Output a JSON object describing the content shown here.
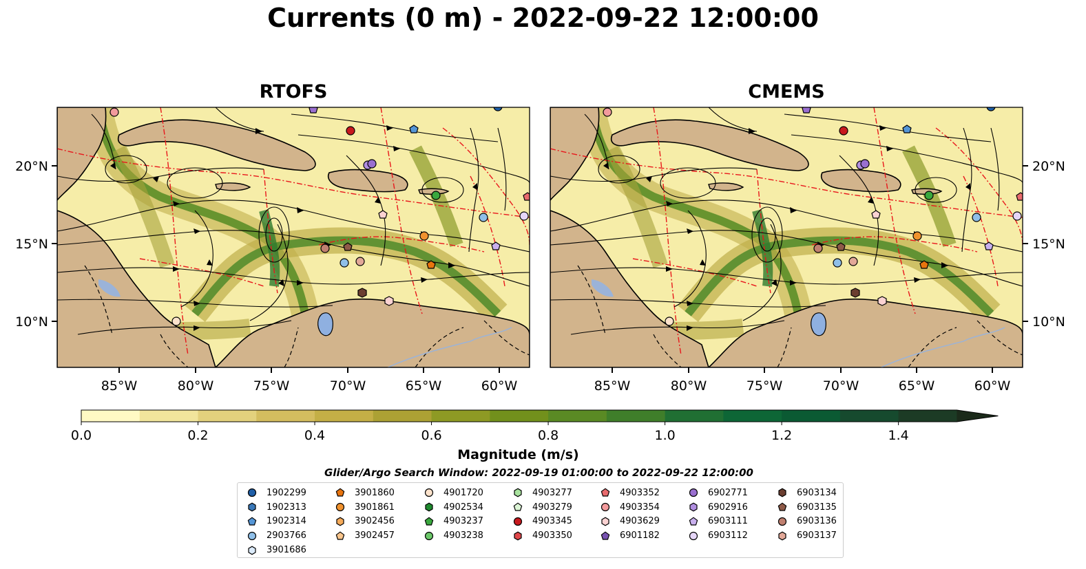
{
  "title": "Currents (0 m) - 2022-09-22 12:00:00",
  "panels": [
    {
      "title": "RTOFS"
    },
    {
      "title": "CMEMS"
    }
  ],
  "axes": {
    "lon_ticks": [
      "85°W",
      "80°W",
      "75°W",
      "70°W",
      "65°W",
      "60°W"
    ],
    "lat_ticks": [
      "20°N",
      "15°N",
      "10°N"
    ]
  },
  "colorbar": {
    "label": "Magnitude (m/s)",
    "ticks": [
      "0.0",
      "0.2",
      "0.4",
      "0.6",
      "0.8",
      "1.0",
      "1.2",
      "1.4"
    ],
    "range": [
      0,
      1.5
    ],
    "extend": "max",
    "colors": [
      "#fff9c4",
      "#f1e59c",
      "#e3d17d",
      "#d4bd5f",
      "#c4af46",
      "#aca134",
      "#8e9a24",
      "#72901c",
      "#5a8a24",
      "#3f7e2a",
      "#206f33",
      "#0d6636",
      "#0b5a33",
      "#164a2e",
      "#1c3b25",
      "#1b2a1a"
    ]
  },
  "legend": {
    "title": "Glider/Argo Search Window: 2022-09-19 01:00:00 to 2022-09-22 12:00:00",
    "columns": [
      [
        {
          "id": "1902299",
          "marker": "circle",
          "color": "#1f5fa8"
        },
        {
          "id": "1902313",
          "marker": "hexagon",
          "color": "#3a78b8"
        },
        {
          "id": "1902314",
          "marker": "pentagon",
          "color": "#5596d6"
        },
        {
          "id": "2903766",
          "marker": "circle",
          "color": "#8fbfe8"
        },
        {
          "id": "3901686",
          "marker": "hexagon",
          "color": "#dbeafa"
        }
      ],
      [
        {
          "id": "3901860",
          "marker": "pentagon",
          "color": "#e8740e"
        },
        {
          "id": "3901861",
          "marker": "circle",
          "color": "#f0922e"
        },
        {
          "id": "3902456",
          "marker": "hexagon",
          "color": "#f6ab5a"
        },
        {
          "id": "3902457",
          "marker": "pentagon",
          "color": "#f9c58c"
        }
      ],
      [
        {
          "id": "4901720",
          "marker": "circle",
          "color": "#fde3cc"
        },
        {
          "id": "4902534",
          "marker": "hexagon",
          "color": "#1e8a2e"
        },
        {
          "id": "4903237",
          "marker": "pentagon",
          "color": "#3aa83e"
        },
        {
          "id": "4903238",
          "marker": "circle",
          "color": "#6cc86a"
        }
      ],
      [
        {
          "id": "4903277",
          "marker": "hexagon",
          "color": "#a8e29e"
        },
        {
          "id": "4903279",
          "marker": "pentagon",
          "color": "#dcf5d6"
        },
        {
          "id": "4903345",
          "marker": "circle",
          "color": "#c8191e"
        },
        {
          "id": "4903350",
          "marker": "hexagon",
          "color": "#e0474a"
        }
      ],
      [
        {
          "id": "4903352",
          "marker": "pentagon",
          "color": "#e96b6e"
        },
        {
          "id": "4903354",
          "marker": "circle",
          "color": "#f29a9c"
        },
        {
          "id": "4903629",
          "marker": "hexagon",
          "color": "#fbd2d2"
        },
        {
          "id": "6901182",
          "marker": "pentagon",
          "color": "#7752b0"
        }
      ],
      [
        {
          "id": "6902771",
          "marker": "circle",
          "color": "#9a6fd0"
        },
        {
          "id": "6902916",
          "marker": "hexagon",
          "color": "#b08ee0"
        },
        {
          "id": "6903111",
          "marker": "pentagon",
          "color": "#c9b0ee"
        },
        {
          "id": "6903112",
          "marker": "circle",
          "color": "#e6d6f8"
        }
      ],
      [
        {
          "id": "6903134",
          "marker": "hexagon",
          "color": "#6b3e30"
        },
        {
          "id": "6903135",
          "marker": "pentagon",
          "color": "#8e5a48"
        },
        {
          "id": "6903136",
          "marker": "circle",
          "color": "#c08070"
        },
        {
          "id": "6903137",
          "marker": "hexagon",
          "color": "#e2a898"
        }
      ]
    ]
  }
}
